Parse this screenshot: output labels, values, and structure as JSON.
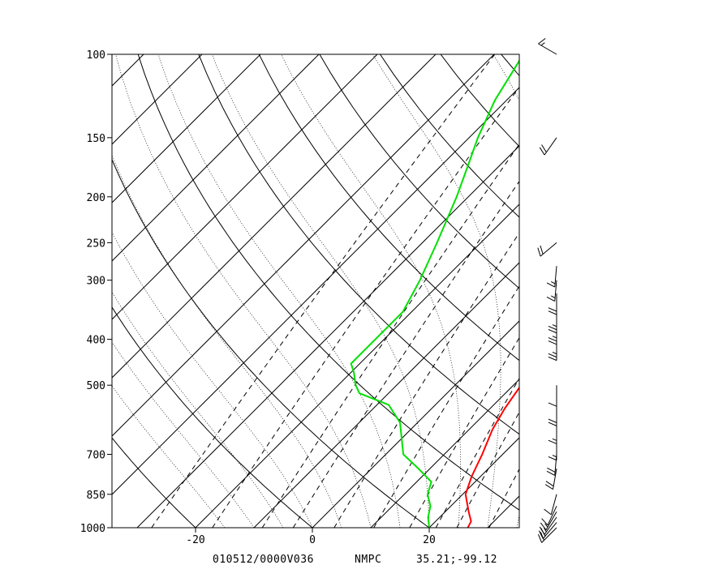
{
  "chart_data": {
    "type": "line",
    "title": "",
    "xlabel": "",
    "ylabel": "",
    "y_scale": "log",
    "y_reversed": true,
    "xlim": [
      -35,
      35
    ],
    "ylim": [
      1000,
      100
    ],
    "pressure_ticks": [
      100,
      150,
      200,
      250,
      300,
      400,
      500,
      700,
      850,
      1000
    ],
    "pressure_tick_labels": [
      "100",
      "150",
      "200",
      "250",
      "300",
      "400",
      "500",
      "700",
      "850",
      "1000"
    ],
    "temperature_ticks": [
      -20,
      0,
      20
    ],
    "temperature_tick_labels": [
      "-20",
      "0",
      "20"
    ],
    "footer": {
      "time": "010512/0000V036",
      "source": "NMPC",
      "location": "35.21;-99.12"
    },
    "series": [
      {
        "color": "#ff0000",
        "points": [
          {
            "p": 1000,
            "t": 26.6
          },
          {
            "p": 970,
            "t": 26.1
          },
          {
            "p": 925,
            "t": 24.0
          },
          {
            "p": 850,
            "t": 20.5
          },
          {
            "p": 780,
            "t": 18.5
          },
          {
            "p": 700,
            "t": 16.5
          },
          {
            "p": 620,
            "t": 14.0
          },
          {
            "p": 560,
            "t": 12.5
          },
          {
            "p": 500,
            "t": 11.3
          },
          {
            "p": 450,
            "t": 9.5
          },
          {
            "p": 400,
            "t": 7.2
          },
          {
            "p": 350,
            "t": 3.5
          },
          {
            "p": 300,
            "t": 0.0
          },
          {
            "p": 250,
            "t": -4.0
          },
          {
            "p": 200,
            "t": -9.5
          },
          {
            "p": 175,
            "t": -10.5
          },
          {
            "p": 150,
            "t": -11.5
          },
          {
            "p": 130,
            "t": -9.0
          },
          {
            "p": 115,
            "t": -5.5
          },
          {
            "p": 100,
            "t": -3.0
          }
        ]
      },
      {
        "color": "#00e000",
        "points": [
          {
            "p": 1000,
            "t": 20.0
          },
          {
            "p": 950,
            "t": 18.0
          },
          {
            "p": 900,
            "t": 16.5
          },
          {
            "p": 850,
            "t": 14.0
          },
          {
            "p": 800,
            "t": 12.5
          },
          {
            "p": 750,
            "t": 8.0
          },
          {
            "p": 700,
            "t": 3.0
          },
          {
            "p": 600,
            "t": -3.0
          },
          {
            "p": 550,
            "t": -8.0
          },
          {
            "p": 520,
            "t": -15.0
          },
          {
            "p": 500,
            "t": -17.0
          },
          {
            "p": 470,
            "t": -19.5
          },
          {
            "p": 450,
            "t": -21.5
          },
          {
            "p": 400,
            "t": -21.5
          },
          {
            "p": 350,
            "t": -21.5
          },
          {
            "p": 300,
            "t": -24.0
          },
          {
            "p": 250,
            "t": -27.5
          },
          {
            "p": 200,
            "t": -32.0
          },
          {
            "p": 175,
            "t": -35.0
          },
          {
            "p": 150,
            "t": -38.5
          },
          {
            "p": 125,
            "t": -42.0
          },
          {
            "p": 100,
            "t": -45.0
          }
        ]
      }
    ],
    "wind_barbs": [
      {
        "p": 1000,
        "speed_kt": 20,
        "direction_deg": 225
      },
      {
        "p": 975,
        "speed_kt": 20,
        "direction_deg": 220
      },
      {
        "p": 950,
        "speed_kt": 15,
        "direction_deg": 215
      },
      {
        "p": 925,
        "speed_kt": 15,
        "direction_deg": 210
      },
      {
        "p": 900,
        "speed_kt": 10,
        "direction_deg": 205
      },
      {
        "p": 850,
        "speed_kt": 10,
        "direction_deg": 195
      },
      {
        "p": 750,
        "speed_kt": 20,
        "direction_deg": 190
      },
      {
        "p": 700,
        "speed_kt": 20,
        "direction_deg": 185
      },
      {
        "p": 650,
        "speed_kt": 15,
        "direction_deg": 180
      },
      {
        "p": 600,
        "speed_kt": 15,
        "direction_deg": 180
      },
      {
        "p": 550,
        "speed_kt": 20,
        "direction_deg": 180
      },
      {
        "p": 500,
        "speed_kt": 10,
        "direction_deg": 180
      },
      {
        "p": 400,
        "speed_kt": 25,
        "direction_deg": 180
      },
      {
        "p": 370,
        "speed_kt": 25,
        "direction_deg": 180
      },
      {
        "p": 350,
        "speed_kt": 25,
        "direction_deg": 180
      },
      {
        "p": 320,
        "speed_kt": 20,
        "direction_deg": 180
      },
      {
        "p": 300,
        "speed_kt": 15,
        "direction_deg": 185
      },
      {
        "p": 280,
        "speed_kt": 15,
        "direction_deg": 185
      },
      {
        "p": 250,
        "speed_kt": 20,
        "direction_deg": 230
      },
      {
        "p": 150,
        "speed_kt": 20,
        "direction_deg": 215
      },
      {
        "p": 100,
        "speed_kt": 15,
        "direction_deg": 300
      }
    ],
    "background_lines": {
      "isotherms": "solid, skewed 45 degrees, every 10 C",
      "dry_adiabats": "solid curves",
      "moist_adiabats": "dotted curves",
      "mixing_ratio": "dashed lines"
    }
  }
}
